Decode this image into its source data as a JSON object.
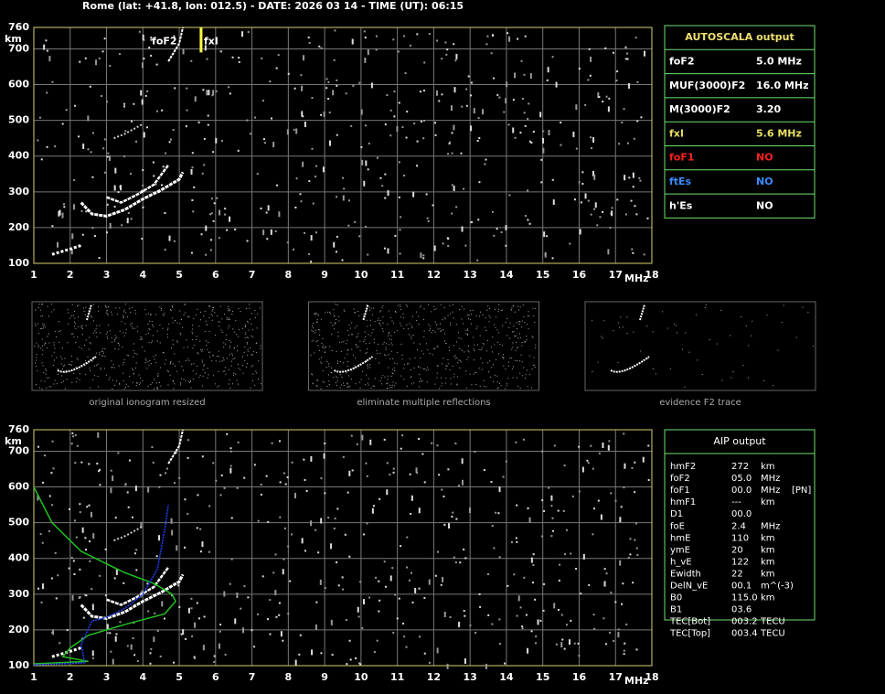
{
  "header": {
    "title": "Rome (lat: +41.8, lon: 012.5) - DATE: 2026 03 14 - TIME (UT): 06:15"
  },
  "ionograms": [
    {
      "y_unit": "km",
      "x_unit": "MHz",
      "xlim": [
        1,
        18
      ],
      "ylim": [
        100,
        760
      ],
      "xticks": [
        1,
        2,
        3,
        4,
        5,
        6,
        7,
        8,
        9,
        10,
        11,
        12,
        13,
        14,
        15,
        16,
        17,
        18
      ],
      "yticks": [
        100,
        200,
        300,
        400,
        500,
        600,
        700,
        760
      ],
      "labels": {
        "foF2": "foF2",
        "fxI": "fxI"
      }
    },
    {
      "y_unit": "km",
      "x_unit": "MHz",
      "xlim": [
        1,
        18
      ],
      "ylim": [
        100,
        760
      ],
      "xticks": [
        1,
        2,
        3,
        4,
        5,
        6,
        7,
        8,
        9,
        10,
        11,
        12,
        13,
        14,
        15,
        16,
        17,
        18
      ],
      "yticks": [
        100,
        200,
        300,
        400,
        500,
        600,
        700,
        760
      ]
    }
  ],
  "autoscala": {
    "title": "AUTOSCALA output",
    "rows": [
      {
        "label": "foF2",
        "value": "5.0 MHz",
        "color": "#ffffff"
      },
      {
        "label": "MUF(3000)F2",
        "value": "16.0 MHz",
        "color": "#ffffff"
      },
      {
        "label": "M(3000)F2",
        "value": "3.20",
        "color": "#ffffff"
      },
      {
        "label": "fxI",
        "value": "5.6 MHz",
        "color": "#e8e060"
      },
      {
        "label": "foF1",
        "value": "NO",
        "color": "#ff2020"
      },
      {
        "label": "ftEs",
        "value": "NO",
        "color": "#3a8cff"
      },
      {
        "label": "h'Es",
        "value": "NO",
        "color": "#ffffff"
      }
    ]
  },
  "thumbnails": [
    {
      "caption": "original ionogram resized"
    },
    {
      "caption": "eliminate multiple reflections"
    },
    {
      "caption": "evidence F2 trace"
    }
  ],
  "aip": {
    "title": "AIP output",
    "rows": [
      [
        "hmF2",
        "272",
        "km"
      ],
      [
        "foF2",
        "05.0",
        "MHz"
      ],
      [
        "foF1",
        "00.0",
        "MHz",
        "[PN]"
      ],
      [
        "hmF1",
        "---",
        "km"
      ],
      [
        "D1",
        "00.0"
      ],
      [
        "foE",
        "2.4",
        "MHz"
      ],
      [
        "hmE",
        "110",
        "km"
      ],
      [
        "ymE",
        "20",
        "km"
      ],
      [
        "h_vE",
        "122",
        "km"
      ],
      [
        "Ewidth",
        "22",
        "km"
      ],
      [
        "DelN_vE",
        "00.1",
        "m^(-3)"
      ],
      [
        "B0",
        "115.0",
        "km"
      ],
      [
        "B1",
        "03.6"
      ],
      [
        "TEC[Bot]",
        "003.2",
        "TECU"
      ],
      [
        "TEC[Top]",
        "003.4",
        "TECU"
      ]
    ]
  }
}
